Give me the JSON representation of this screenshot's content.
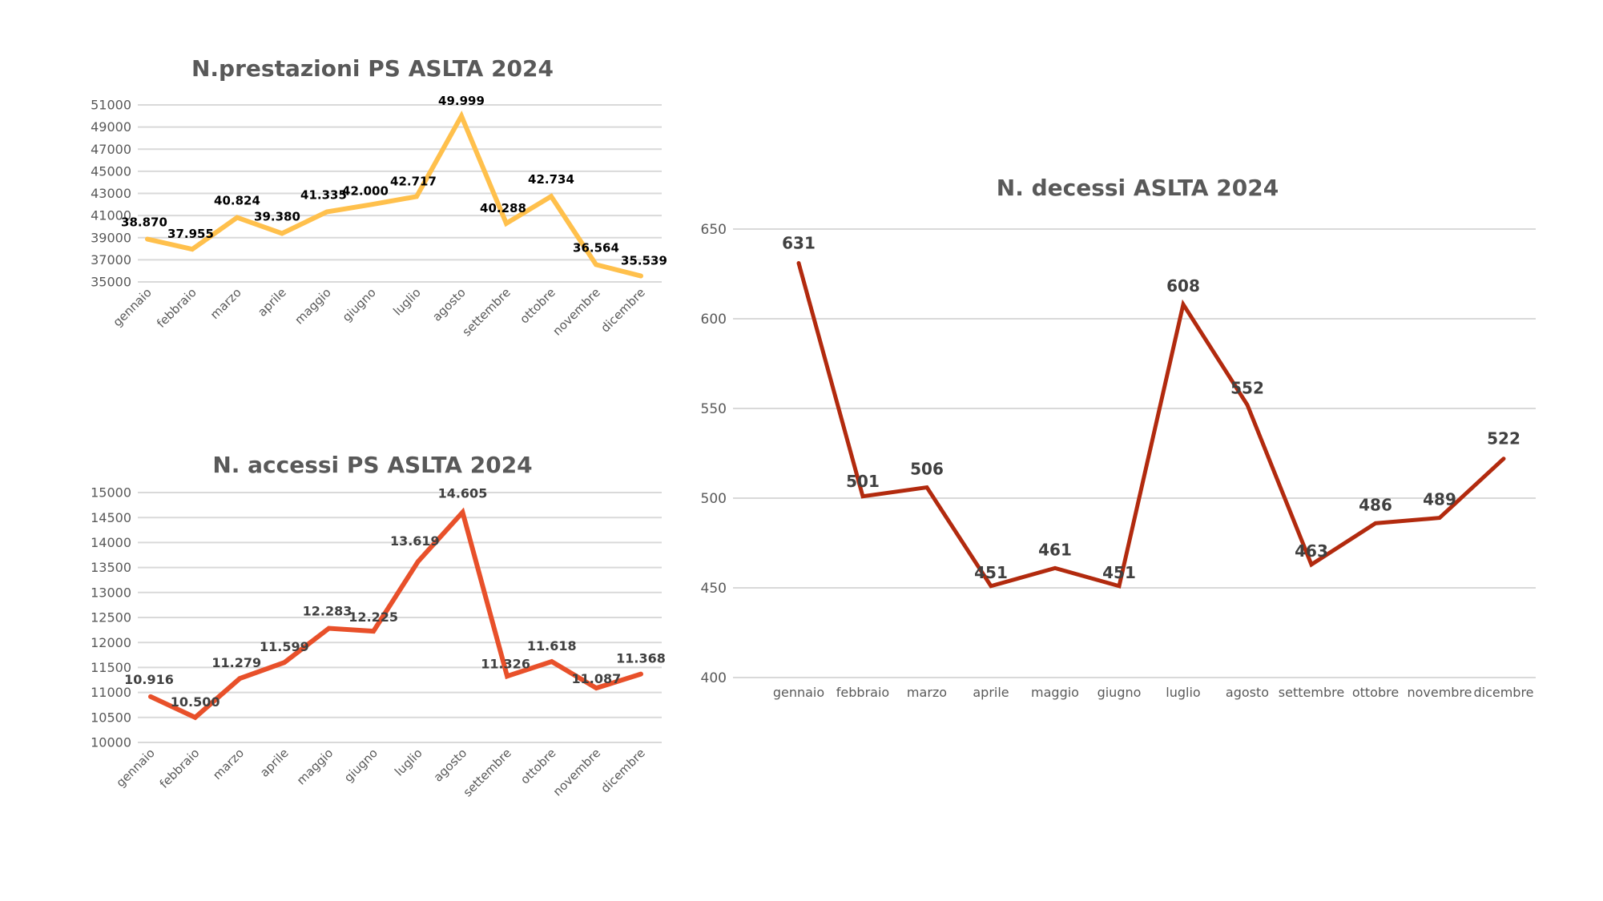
{
  "chart_data": [
    {
      "id": "prestazioni",
      "type": "line",
      "title": "N.prestazioni PS ASLTA 2024",
      "xlabel": "",
      "ylabel": "",
      "categories": [
        "gennaio",
        "febbraio",
        "marzo",
        "aprile",
        "maggio",
        "giugno",
        "luglio",
        "agosto",
        "settembre",
        "ottobre",
        "novembre",
        "dicembre"
      ],
      "series": [
        {
          "name": "N.prestazioni PS",
          "color": "#FFC04C",
          "values": [
            38870,
            37955,
            40824,
            39380,
            41335,
            42000,
            42717,
            49999,
            40288,
            42734,
            36564,
            35539
          ],
          "labels": [
            "38.870",
            "37.955",
            "40.824",
            "39.380",
            "41.335",
            "42.000",
            "42.717",
            "49.999",
            "40.288",
            "42.734",
            "36.564",
            "35.539"
          ],
          "label_color": "#000000"
        }
      ],
      "ylim": [
        35000,
        51000
      ],
      "yticks": [
        35000,
        37000,
        39000,
        41000,
        43000,
        45000,
        47000,
        49000,
        51000
      ],
      "ytick_labels": [
        "35000",
        "37000",
        "39000",
        "41000",
        "43000",
        "45000",
        "47000",
        "49000",
        "51000"
      ],
      "grid": true,
      "x_label_rotation": "diagonal",
      "legend": "none"
    },
    {
      "id": "accessi",
      "type": "line",
      "title": "N. accessi PS ASLTA 2024",
      "xlabel": "",
      "ylabel": "",
      "categories": [
        "gennaio",
        "febbraio",
        "marzo",
        "aprile",
        "maggio",
        "giugno",
        "luglio",
        "agosto",
        "settembre",
        "ottobre",
        "novembre",
        "dicembre"
      ],
      "series": [
        {
          "name": "N. accessi PS",
          "color": "#E8502A",
          "values": [
            10916,
            10500,
            11279,
            11599,
            12283,
            12225,
            13619,
            14605,
            11326,
            11618,
            11087,
            11368
          ],
          "labels": [
            "10.916",
            "10.500",
            "11.279",
            "11.599",
            "12.283",
            "12.225",
            "13.619",
            "14.605",
            "11.326",
            "11.618",
            "11.087",
            "11.368"
          ],
          "label_color": "#404040"
        }
      ],
      "ylim": [
        10000,
        15000
      ],
      "yticks": [
        10000,
        10500,
        11000,
        11500,
        12000,
        12500,
        13000,
        13500,
        14000,
        14500,
        15000
      ],
      "ytick_labels": [
        "10000",
        "10500",
        "11000",
        "11500",
        "12000",
        "12500",
        "13000",
        "13500",
        "14000",
        "14500",
        "15000"
      ],
      "grid": true,
      "x_label_rotation": "diagonal",
      "legend": "none"
    },
    {
      "id": "decessi",
      "type": "line",
      "title": "N. decessi ASLTA 2024",
      "xlabel": "",
      "ylabel": "",
      "categories": [
        "gennaio",
        "febbraio",
        "marzo",
        "aprile",
        "maggio",
        "giugno",
        "luglio",
        "agosto",
        "settembre",
        "ottobre",
        "novembre",
        "dicembre"
      ],
      "series": [
        {
          "name": "N. decessi",
          "color": "#B22A0E",
          "values": [
            631,
            501,
            506,
            451,
            461,
            451,
            608,
            552,
            463,
            486,
            489,
            522
          ],
          "labels": [
            "631",
            "501",
            "506",
            "451",
            "461",
            "451",
            "608",
            "552",
            "463",
            "486",
            "489",
            "522"
          ],
          "label_color": "#404040"
        }
      ],
      "ylim": [
        400,
        650
      ],
      "yticks": [
        400,
        450,
        500,
        550,
        600,
        650
      ],
      "ytick_labels": [
        "400",
        "450",
        "500",
        "550",
        "600",
        "650"
      ],
      "grid": true,
      "x_label_rotation": "horizontal",
      "legend": "none"
    }
  ]
}
